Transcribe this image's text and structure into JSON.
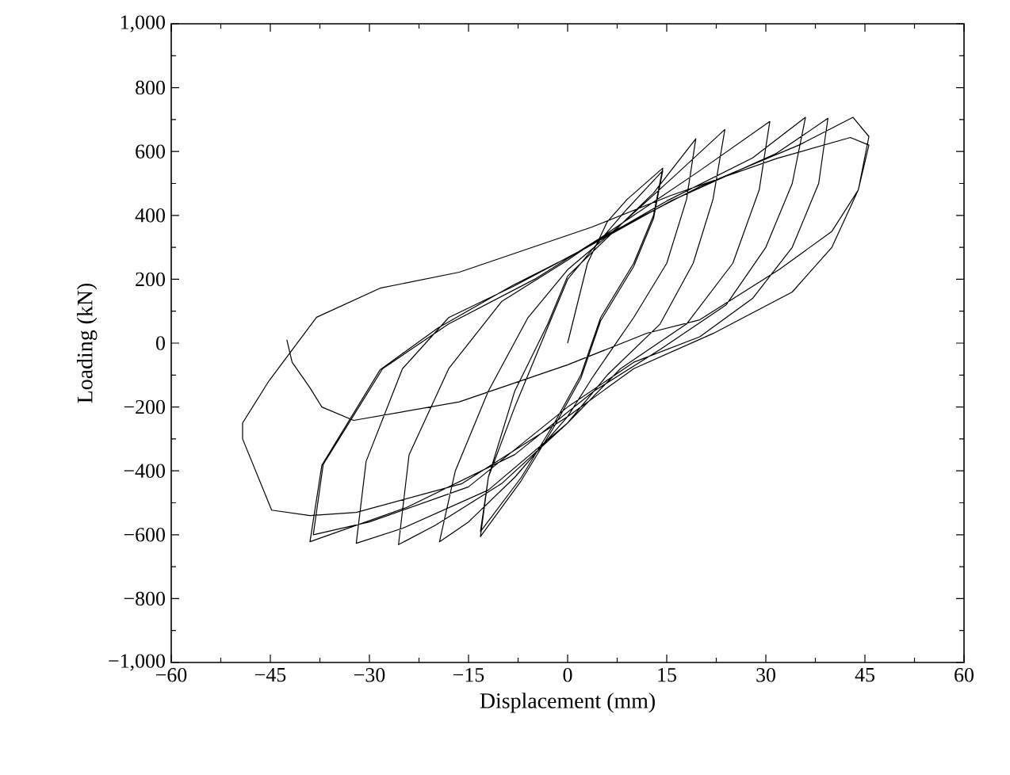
{
  "chart_data": {
    "type": "line",
    "xlabel": "Displacement (mm)",
    "ylabel": "Loading (kN)",
    "xlim": [
      -60,
      60
    ],
    "ylim": [
      -1000,
      1000
    ],
    "xticks": [
      {
        "value": -60,
        "label": "−60"
      },
      {
        "value": -52.5,
        "label": null
      },
      {
        "value": -45,
        "label": "−45"
      },
      {
        "value": -37.5,
        "label": null
      },
      {
        "value": -30,
        "label": "−30"
      },
      {
        "value": -22.5,
        "label": null
      },
      {
        "value": -15,
        "label": "−15"
      },
      {
        "value": -7.5,
        "label": null
      },
      0,
      {
        "value": 7.5,
        "label": null
      },
      15,
      {
        "value": 22.5,
        "label": null
      },
      30,
      {
        "value": 37.5,
        "label": null
      },
      45,
      {
        "value": 52.5,
        "label": null
      },
      60
    ],
    "yticks": [
      {
        "value": -1000,
        "label": "−1,000"
      },
      {
        "value": -900,
        "label": null
      },
      {
        "value": -800,
        "label": "−800"
      },
      {
        "value": -700,
        "label": null
      },
      {
        "value": -600,
        "label": "−600"
      },
      {
        "value": -500,
        "label": null
      },
      {
        "value": -400,
        "label": "−400"
      },
      {
        "value": -300,
        "label": null
      },
      {
        "value": -200,
        "label": "−200"
      },
      {
        "value": -100,
        "label": null
      },
      0,
      {
        "value": 100,
        "label": null
      },
      200,
      {
        "value": 300,
        "label": null
      },
      400,
      {
        "value": 500,
        "label": null
      },
      600,
      {
        "value": 700,
        "label": null
      },
      800,
      {
        "value": 900,
        "label": null
      },
      {
        "value": 1000,
        "label": "1,000"
      }
    ],
    "marker": "none",
    "line_style": "solid",
    "series": [
      {
        "color": "#000000",
        "x": [
          0,
          3,
          6,
          9,
          14.4,
          13,
          10,
          5,
          2,
          -2,
          -7,
          -13.2,
          -12,
          -8,
          -3,
          0,
          4,
          9,
          14.4,
          13,
          10,
          5,
          2,
          -2,
          -7,
          -13.2,
          -12,
          -8,
          -3,
          0,
          6,
          13,
          19.4,
          18,
          15,
          10,
          4,
          0,
          -8,
          -15,
          -19.4,
          -17,
          -12,
          -6,
          0,
          8,
          16,
          23.8,
          22,
          19,
          14,
          6,
          0,
          -10,
          -20,
          -25.6,
          -24,
          -18,
          -10,
          0,
          10,
          20,
          30.6,
          29,
          25,
          18,
          8,
          0,
          -12,
          -25,
          -32,
          -30.5,
          -25,
          -18,
          -8,
          2,
          15,
          28,
          36,
          34,
          30,
          24,
          14,
          4,
          -8,
          -24.4,
          -39,
          -37.2,
          -28.4,
          -19.6,
          -8.4,
          1.2,
          15.6,
          31.6,
          39.4,
          38,
          34,
          28,
          20,
          10,
          0,
          -15,
          -30,
          -38.5,
          -37,
          -28,
          -18,
          -5,
          5,
          20,
          35,
          43.2,
          45.6,
          44,
          40,
          34,
          22,
          10,
          0,
          -16,
          -32,
          -39,
          -44.8,
          -49.2,
          -49.2,
          -45.2,
          -38,
          -28.4,
          -16.4,
          3.6,
          15.6,
          31.6,
          42.8,
          45.6,
          44,
          40,
          32,
          20,
          12,
          0,
          -16.4,
          -32.4,
          -37.2,
          -39,
          -41.7,
          -42.5
        ],
        "values": [
          0,
          250,
          380,
          450,
          548,
          400,
          250,
          80,
          -100,
          -250,
          -420,
          -590,
          -420,
          -200,
          50,
          200,
          300,
          420,
          540,
          390,
          240,
          70,
          -110,
          -260,
          -430,
          -606,
          -420,
          -150,
          60,
          210,
          330,
          470,
          640,
          450,
          250,
          80,
          -100,
          -230,
          -420,
          -560,
          -622,
          -400,
          -150,
          80,
          230,
          370,
          520,
          669,
          450,
          250,
          60,
          -100,
          -250,
          -440,
          -570,
          -631,
          -350,
          -80,
          130,
          260,
          400,
          540,
          694,
          480,
          250,
          60,
          -80,
          -250,
          -460,
          -580,
          -627,
          -370,
          -80,
          80,
          180,
          290,
          445,
          580,
          707,
          500,
          300,
          120,
          -20,
          -150,
          -349,
          -515,
          -622,
          -382,
          -84,
          48,
          180,
          280,
          445,
          594,
          704,
          500,
          300,
          140,
          20,
          -60,
          -200,
          -450,
          -560,
          -600,
          -380,
          -80,
          60,
          200,
          330,
          490,
          620,
          707,
          647,
          480,
          300,
          160,
          30,
          -80,
          -230,
          -440,
          -530,
          -540,
          -523,
          -300,
          -250,
          -118,
          81,
          172,
          222,
          363,
          462,
          578,
          644,
          620,
          480,
          350,
          230,
          73,
          31,
          -68,
          -184,
          -242,
          -200,
          -140,
          -60,
          10
        ]
      }
    ]
  }
}
